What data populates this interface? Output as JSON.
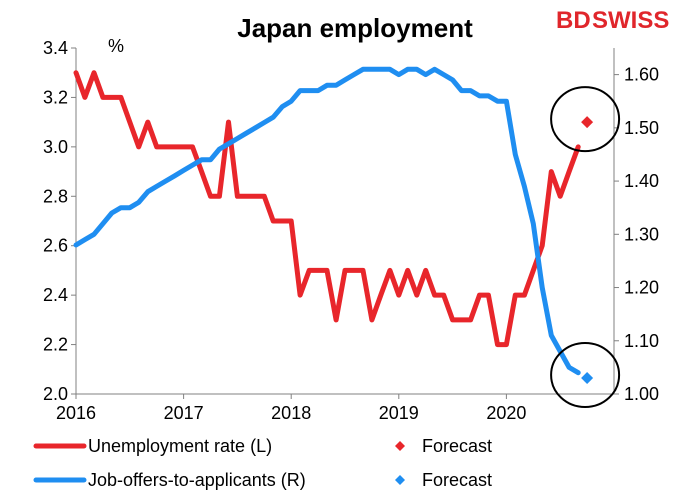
{
  "colors": {
    "unemployment": "#e8262b",
    "jobs": "#1f8ef1",
    "axis": "#808080"
  },
  "chart_data": {
    "type": "line",
    "title": "Japan employment",
    "left_unit": "%",
    "brand": {
      "bd": "BD",
      "swiss": "SWISS"
    },
    "x_ticks": [
      "2016",
      "2017",
      "2018",
      "2019",
      "2020"
    ],
    "x_range": [
      2016.0,
      2021.0
    ],
    "y_left": {
      "range": [
        2.0,
        3.4
      ],
      "ticks": [
        "2.0",
        "2.2",
        "2.4",
        "2.6",
        "2.8",
        "3.0",
        "3.2",
        "3.4"
      ]
    },
    "y_right": {
      "range": [
        1.0,
        1.65
      ],
      "ticks": [
        "1.00",
        "1.10",
        "1.20",
        "1.30",
        "1.40",
        "1.50",
        "1.60"
      ]
    },
    "series": [
      {
        "name": "Unemployment rate (L)",
        "axis": "left",
        "key": "unemployment",
        "x": [
          2016.0,
          2016.083,
          2016.167,
          2016.25,
          2016.333,
          2016.417,
          2016.5,
          2016.583,
          2016.667,
          2016.75,
          2016.833,
          2016.917,
          2017.0,
          2017.083,
          2017.167,
          2017.25,
          2017.333,
          2017.417,
          2017.5,
          2017.583,
          2017.667,
          2017.75,
          2017.833,
          2017.917,
          2018.0,
          2018.083,
          2018.167,
          2018.25,
          2018.333,
          2018.417,
          2018.5,
          2018.583,
          2018.667,
          2018.75,
          2018.833,
          2018.917,
          2019.0,
          2019.083,
          2019.167,
          2019.25,
          2019.333,
          2019.417,
          2019.5,
          2019.583,
          2019.667,
          2019.75,
          2019.833,
          2019.917,
          2020.0,
          2020.083,
          2020.167,
          2020.25,
          2020.333,
          2020.417,
          2020.5,
          2020.583,
          2020.667
        ],
        "y": [
          3.3,
          3.2,
          3.3,
          3.2,
          3.2,
          3.2,
          3.1,
          3.0,
          3.1,
          3.0,
          3.0,
          3.0,
          3.0,
          3.0,
          2.9,
          2.8,
          2.8,
          3.1,
          2.8,
          2.8,
          2.8,
          2.8,
          2.7,
          2.7,
          2.7,
          2.4,
          2.5,
          2.5,
          2.5,
          2.3,
          2.5,
          2.5,
          2.5,
          2.3,
          2.4,
          2.5,
          2.4,
          2.5,
          2.4,
          2.5,
          2.4,
          2.4,
          2.3,
          2.3,
          2.3,
          2.4,
          2.4,
          2.2,
          2.2,
          2.4,
          2.4,
          2.5,
          2.6,
          2.9,
          2.8,
          2.9,
          3.0
        ]
      },
      {
        "name": "Job-offers-to-applicants (R)",
        "axis": "right",
        "key": "jobs",
        "x": [
          2016.0,
          2016.083,
          2016.167,
          2016.25,
          2016.333,
          2016.417,
          2016.5,
          2016.583,
          2016.667,
          2016.75,
          2016.833,
          2016.917,
          2017.0,
          2017.083,
          2017.167,
          2017.25,
          2017.333,
          2017.417,
          2017.5,
          2017.583,
          2017.667,
          2017.75,
          2017.833,
          2017.917,
          2018.0,
          2018.083,
          2018.167,
          2018.25,
          2018.333,
          2018.417,
          2018.5,
          2018.583,
          2018.667,
          2018.75,
          2018.833,
          2018.917,
          2019.0,
          2019.083,
          2019.167,
          2019.25,
          2019.333,
          2019.417,
          2019.5,
          2019.583,
          2019.667,
          2019.75,
          2019.833,
          2019.917,
          2020.0,
          2020.083,
          2020.167,
          2020.25,
          2020.333,
          2020.417,
          2020.5,
          2020.583,
          2020.667
        ],
        "y": [
          1.28,
          1.29,
          1.3,
          1.32,
          1.34,
          1.35,
          1.35,
          1.36,
          1.38,
          1.39,
          1.4,
          1.41,
          1.42,
          1.43,
          1.44,
          1.44,
          1.46,
          1.47,
          1.48,
          1.49,
          1.5,
          1.51,
          1.52,
          1.54,
          1.55,
          1.57,
          1.57,
          1.57,
          1.58,
          1.58,
          1.59,
          1.6,
          1.61,
          1.61,
          1.61,
          1.61,
          1.6,
          1.61,
          1.61,
          1.6,
          1.61,
          1.6,
          1.59,
          1.57,
          1.57,
          1.56,
          1.56,
          1.55,
          1.55,
          1.45,
          1.39,
          1.32,
          1.2,
          1.11,
          1.08,
          1.05,
          1.04
        ]
      }
    ],
    "forecasts": [
      {
        "name": "Forecast",
        "key": "unemployment",
        "axis": "left",
        "x": 2020.75,
        "y": 3.1
      },
      {
        "name": "Forecast",
        "key": "jobs",
        "axis": "right",
        "x": 2020.75,
        "y": 1.03
      }
    ],
    "legend": {
      "position": "bottom",
      "items": [
        {
          "label": "Unemployment rate (L)",
          "key": "unemployment",
          "marker": "line"
        },
        {
          "label": "Forecast",
          "key": "unemployment",
          "marker": "diamond"
        },
        {
          "label": "Job-offers-to-applicants (R)",
          "key": "jobs",
          "marker": "line"
        },
        {
          "label": "Forecast",
          "key": "jobs",
          "marker": "diamond"
        }
      ]
    },
    "grid": false
  }
}
